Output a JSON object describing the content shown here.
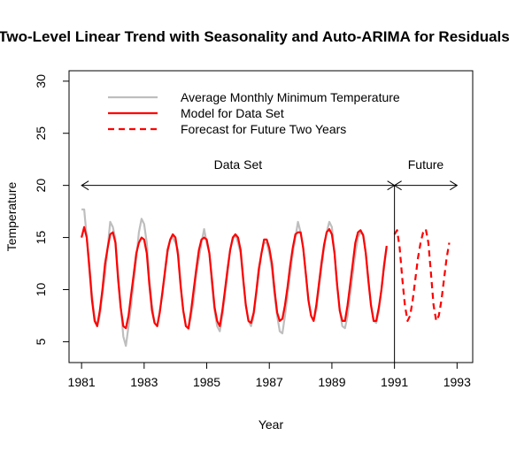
{
  "chart_data": {
    "type": "line",
    "title": "Two-Level Linear Trend with Seasonality and Auto-ARIMA for Residuals",
    "xlabel": "Year",
    "ylabel": "Temperature",
    "xlim": [
      1980.6,
      1993.5
    ],
    "ylim": [
      3,
      31
    ],
    "x_ticks": [
      1981,
      1983,
      1985,
      1987,
      1989,
      1991,
      1993
    ],
    "x_tick_labels": [
      "1981",
      "1983",
      "1985",
      "1987",
      "1989",
      "1991",
      "1993"
    ],
    "y_ticks": [
      5,
      10,
      15,
      20,
      25,
      30
    ],
    "y_tick_labels": [
      "5",
      "10",
      "15",
      "20",
      "25",
      "30"
    ],
    "grid": false,
    "legend_position": "top-left",
    "series": [
      {
        "name": "Average Monthly Minimum Temperature",
        "color": "#bebebe",
        "style": "solid",
        "x_start": 1981.0,
        "x_step": 0.0833333,
        "values": [
          17.7,
          17.7,
          15.0,
          12.5,
          9.5,
          7.2,
          6.5,
          7.5,
          9.5,
          11.5,
          14.0,
          16.5,
          16.0,
          14.8,
          11.5,
          8.5,
          5.5,
          4.6,
          6.5,
          8.5,
          10.8,
          13.0,
          15.5,
          16.8,
          16.3,
          14.5,
          11.0,
          8.5,
          6.8,
          6.5,
          8.0,
          9.5,
          11.5,
          13.5,
          14.8,
          15.0,
          14.5,
          13.8,
          10.5,
          8.0,
          6.5,
          6.2,
          7.5,
          9.0,
          11.5,
          13.0,
          14.5,
          15.8,
          14.5,
          13.5,
          10.5,
          8.0,
          6.5,
          6.0,
          7.5,
          9.5,
          11.5,
          13.8,
          14.8,
          15.3,
          14.5,
          13.5,
          10.8,
          8.5,
          7.0,
          6.5,
          7.5,
          9.5,
          11.5,
          13.5,
          14.5,
          14.5,
          13.5,
          12.0,
          9.5,
          7.5,
          6.0,
          5.8,
          7.5,
          9.5,
          11.5,
          13.5,
          15.0,
          16.5,
          15.5,
          14.0,
          11.5,
          9.0,
          7.5,
          7.0,
          8.0,
          10.0,
          12.0,
          14.0,
          15.5,
          16.5,
          16.0,
          13.5,
          10.5,
          8.0,
          6.5,
          6.3,
          7.5,
          9.5,
          11.5,
          13.5,
          15.0,
          15.5,
          15.3,
          13.5,
          11.0,
          8.5,
          7.0,
          6.8,
          8.0,
          10.0,
          12.0,
          14.0
        ]
      },
      {
        "name": "Model for Data Set",
        "color": "#ff0000",
        "style": "solid",
        "x_start": 1981.0,
        "x_step": 0.0833333,
        "values": [
          15.0,
          16.0,
          15.0,
          12.0,
          9.0,
          7.0,
          6.5,
          8.0,
          10.0,
          12.5,
          14.0,
          15.3,
          15.5,
          14.5,
          11.0,
          8.3,
          6.5,
          6.3,
          7.5,
          9.5,
          11.5,
          13.5,
          14.5,
          15.0,
          14.8,
          13.5,
          10.5,
          8.0,
          6.8,
          6.5,
          7.8,
          9.8,
          11.8,
          13.8,
          14.8,
          15.3,
          15.0,
          13.3,
          10.3,
          8.0,
          6.5,
          6.3,
          8.0,
          10.0,
          12.0,
          13.8,
          14.8,
          15.0,
          14.8,
          13.5,
          11.0,
          8.3,
          7.0,
          6.5,
          8.0,
          10.0,
          12.0,
          13.8,
          15.0,
          15.3,
          15.0,
          13.8,
          11.0,
          8.5,
          7.0,
          6.8,
          7.8,
          9.8,
          12.0,
          13.5,
          14.8,
          14.8,
          14.0,
          12.5,
          10.0,
          7.8,
          7.0,
          7.2,
          8.5,
          10.3,
          12.3,
          14.0,
          15.3,
          15.5,
          15.5,
          14.0,
          11.5,
          9.0,
          7.5,
          7.0,
          8.5,
          10.5,
          12.5,
          14.3,
          15.5,
          15.8,
          15.3,
          13.5,
          10.5,
          8.0,
          7.0,
          7.0,
          8.5,
          10.5,
          12.5,
          14.5,
          15.5,
          15.7,
          15.2,
          13.5,
          10.8,
          8.5,
          7.0,
          7.0,
          8.3,
          10.0,
          12.3,
          14.2
        ]
      },
      {
        "name": "Forecast for Future Two Years",
        "color": "#ff0000",
        "style": "dashed",
        "x_start": 1991.0,
        "x_step": 0.0833333,
        "values": [
          15.3,
          15.7,
          14.0,
          11.0,
          8.5,
          7.0,
          7.5,
          9.0,
          11.0,
          13.0,
          14.5,
          15.5,
          15.8,
          14.5,
          11.5,
          8.5,
          7.0,
          7.5,
          9.0,
          11.0,
          13.0,
          14.5
        ]
      }
    ],
    "annotations": [
      {
        "text": "Data Set",
        "x": 1986.0,
        "y": 22.0
      },
      {
        "text": "Future",
        "x": 1992.0,
        "y": 22.0
      }
    ],
    "arrows": [
      {
        "x1": 1981.0,
        "x2": 1991.0,
        "y": 20
      },
      {
        "x1": 1991.0,
        "x2": 1993.0,
        "y": 20
      }
    ],
    "vline": {
      "x": 1991.0,
      "y_from": 20,
      "y_to": 3
    }
  }
}
